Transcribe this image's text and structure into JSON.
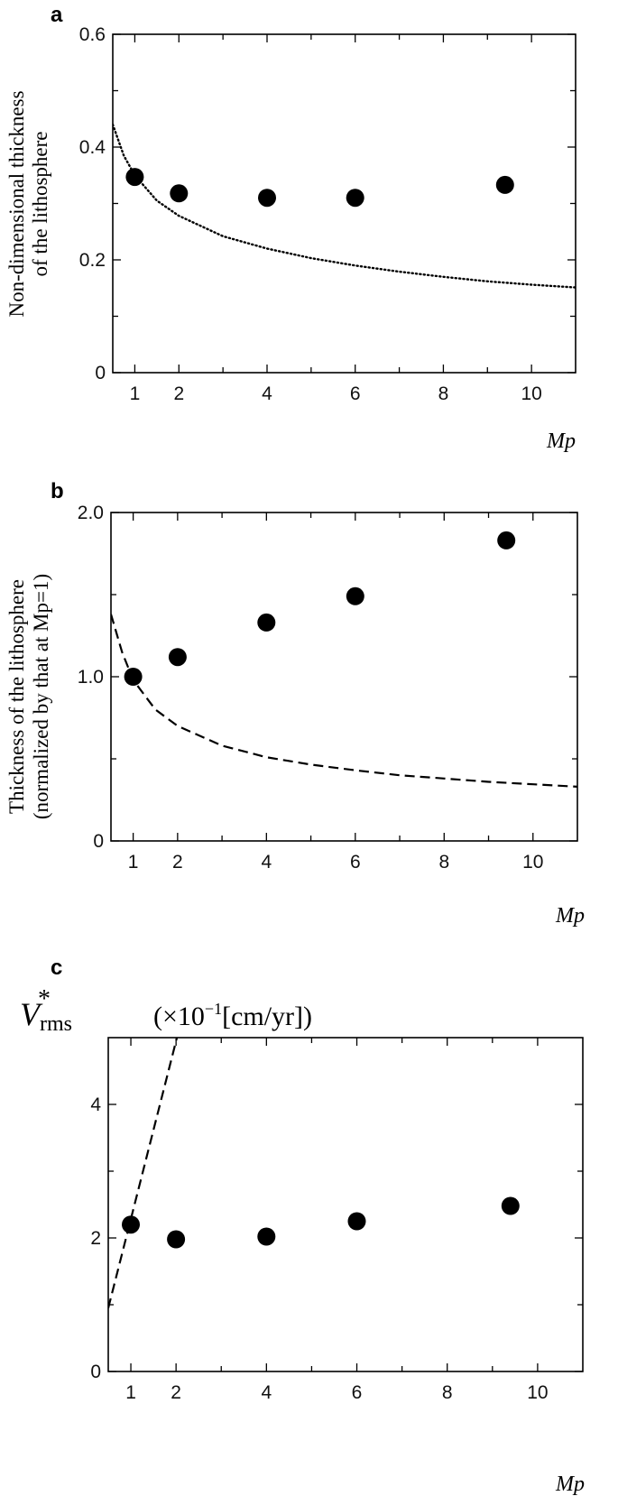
{
  "chart_data": [
    {
      "type": "scatter",
      "panel_label": "a",
      "ylabel_lines": [
        "Non-dimensional thickness",
        "of the lithosphere"
      ],
      "xlabel": "Mp",
      "xlim": [
        0.5,
        11
      ],
      "ylim": [
        0,
        0.6
      ],
      "x_ticks": [
        1,
        2,
        4,
        6,
        8,
        10
      ],
      "x_minor_ticks": [
        3,
        5,
        7,
        9
      ],
      "y_ticks": [
        0,
        0.2,
        0.4,
        0.6
      ],
      "y_minor_ticks": [
        0.1,
        0.3,
        0.5
      ],
      "y_tick_labels": [
        "0",
        "0.2",
        "0.4",
        "0.6"
      ],
      "series": [
        {
          "kind": "points",
          "x": [
            1,
            2,
            4,
            6,
            9.4
          ],
          "y": [
            0.347,
            0.318,
            0.31,
            0.31,
            0.333
          ]
        },
        {
          "kind": "curve",
          "style": "dotted",
          "x": [
            0.5,
            0.75,
            1,
            1.5,
            2,
            3,
            4,
            5,
            6,
            7,
            8,
            9,
            10,
            11
          ],
          "y": [
            0.44,
            0.385,
            0.35,
            0.305,
            0.278,
            0.242,
            0.22,
            0.203,
            0.19,
            0.179,
            0.17,
            0.162,
            0.156,
            0.151
          ]
        }
      ],
      "grid": false
    },
    {
      "type": "scatter",
      "panel_label": "b",
      "ylabel_lines": [
        "Thickness of the lithosphere",
        "(normalized by that at Mp=1)"
      ],
      "xlabel": "Mp",
      "xlim": [
        0.5,
        11
      ],
      "ylim": [
        0,
        2.0
      ],
      "x_ticks": [
        1,
        2,
        4,
        6,
        8,
        10
      ],
      "x_minor_ticks": [
        3,
        5,
        7,
        9
      ],
      "y_ticks": [
        0,
        1.0,
        2.0
      ],
      "y_minor_ticks": [
        0.5,
        1.5
      ],
      "y_tick_labels": [
        "0",
        "1.0",
        "2.0"
      ],
      "series": [
        {
          "kind": "points",
          "x": [
            1,
            2,
            4,
            6,
            9.4
          ],
          "y": [
            1.0,
            1.12,
            1.33,
            1.49,
            1.83
          ]
        },
        {
          "kind": "curve",
          "style": "dashed",
          "x": [
            0.5,
            0.75,
            1,
            1.5,
            2,
            3,
            4,
            5,
            6,
            7,
            8,
            9,
            10,
            11
          ],
          "y": [
            1.38,
            1.15,
            0.98,
            0.8,
            0.7,
            0.58,
            0.51,
            0.465,
            0.43,
            0.4,
            0.38,
            0.36,
            0.345,
            0.33
          ]
        }
      ],
      "grid": false
    },
    {
      "type": "scatter",
      "panel_label": "c",
      "ylabel_parts": {
        "main": "V",
        "sub": "rms",
        "sup": "*",
        "unit_prefix": "(×10",
        "unit_exp": "−1",
        "unit_rest": "[cm/yr])"
      },
      "xlabel": "Mp",
      "xlim": [
        0.5,
        11
      ],
      "ylim": [
        0,
        5
      ],
      "x_ticks": [
        1,
        2,
        4,
        6,
        8,
        10
      ],
      "x_minor_ticks": [
        3,
        5,
        7,
        9
      ],
      "y_ticks": [
        0,
        2,
        4
      ],
      "y_minor_ticks": [
        1,
        3
      ],
      "y_tick_labels": [
        "0",
        "2",
        "4"
      ],
      "series": [
        {
          "kind": "points",
          "x": [
            1,
            2,
            4,
            6,
            9.4
          ],
          "y": [
            2.2,
            1.98,
            2.02,
            2.25,
            2.48
          ]
        },
        {
          "kind": "curve",
          "style": "dashed",
          "x": [
            0.5,
            2.02
          ],
          "y": [
            0.95,
            5.0
          ]
        }
      ],
      "grid": false
    }
  ]
}
